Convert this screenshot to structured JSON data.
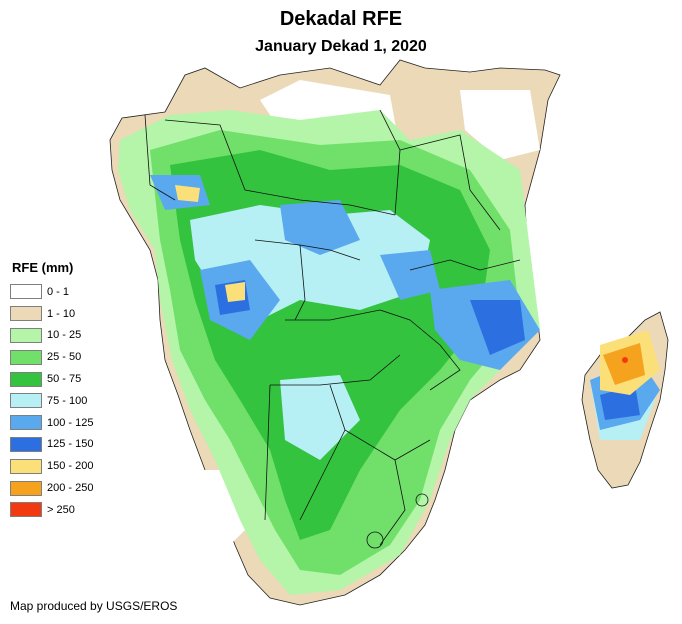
{
  "title": "Dekadal RFE",
  "subtitle": "January Dekad 1, 2020",
  "legend": {
    "title": "RFE (mm)",
    "items": [
      {
        "label": "0 - 1",
        "color": "#ffffff"
      },
      {
        "label": "1 - 10",
        "color": "#ecd9b8"
      },
      {
        "label": "10 - 25",
        "color": "#b4f5a9"
      },
      {
        "label": "25 - 50",
        "color": "#70e06a"
      },
      {
        "label": "50 - 75",
        "color": "#33c33f"
      },
      {
        "label": "75 - 100",
        "color": "#b6f0f5"
      },
      {
        "label": "100 - 125",
        "color": "#5aa8ee"
      },
      {
        "label": "125 - 150",
        "color": "#2c6fe0"
      },
      {
        "label": "150 - 200",
        "color": "#fbe07a"
      },
      {
        "label": "200 - 250",
        "color": "#f5a21e"
      },
      {
        "label": "> 250",
        "color": "#f23a10"
      }
    ]
  },
  "credit": "Map produced by USGS/EROS"
}
